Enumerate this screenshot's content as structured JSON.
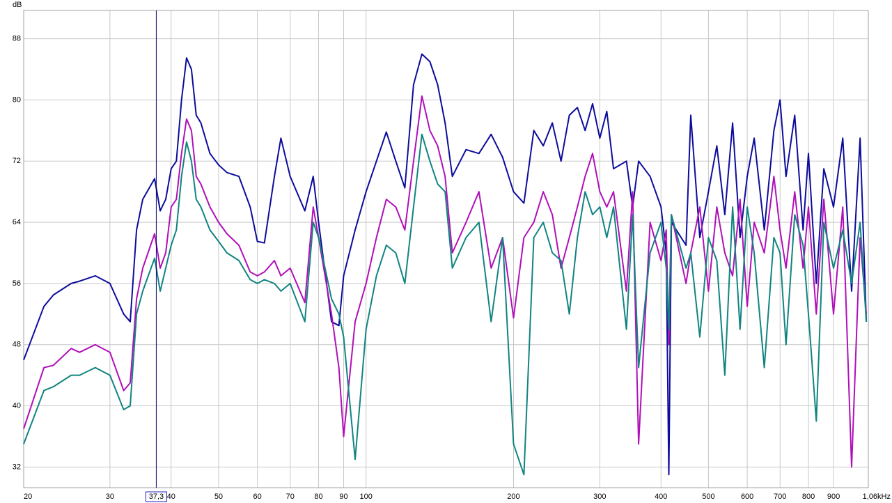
{
  "chart_data": {
    "type": "line",
    "y_label": "dB",
    "log_x": true,
    "grid": true,
    "xlim": [
      20,
      1060
    ],
    "ylim": [
      29.3,
      91.7
    ],
    "xticks": [
      20,
      30,
      40,
      50,
      60,
      70,
      80,
      90,
      100,
      200,
      300,
      400,
      500,
      600,
      700,
      800,
      900,
      {
        "value": 1060,
        "label": "1,06kHz"
      }
    ],
    "yticks": [
      32,
      40,
      48,
      56,
      64,
      72,
      80,
      88
    ],
    "cursor": {
      "value": 37.3,
      "label": "37,3"
    },
    "x": [
      20,
      22,
      23,
      25,
      26,
      28,
      30,
      32,
      33,
      34,
      35,
      37,
      38,
      39,
      40,
      41,
      42,
      43,
      44,
      45,
      46,
      48,
      50,
      52,
      55,
      58,
      60,
      62,
      65,
      67,
      70,
      75,
      78,
      80,
      85,
      88,
      90,
      95,
      100,
      105,
      110,
      115,
      120,
      125,
      130,
      135,
      140,
      145,
      150,
      160,
      170,
      180,
      190,
      200,
      210,
      220,
      230,
      240,
      250,
      260,
      270,
      280,
      290,
      300,
      310,
      320,
      340,
      350,
      360,
      380,
      400,
      410,
      415,
      420,
      450,
      460,
      480,
      500,
      520,
      540,
      560,
      580,
      600,
      620,
      650,
      680,
      700,
      720,
      750,
      780,
      800,
      830,
      860,
      900,
      940,
      980,
      1020,
      1050
    ],
    "series": [
      {
        "color": "#0c0c9c",
        "values": [
          46,
          53,
          54.5,
          56,
          56.3,
          57,
          56,
          52,
          51,
          63,
          67,
          69.7,
          65.5,
          67,
          71,
          72,
          80,
          85.5,
          84,
          78,
          77,
          73,
          71.5,
          70.5,
          70,
          66,
          61.5,
          61.3,
          70,
          75,
          70,
          65.5,
          70,
          64,
          51,
          50.5,
          57,
          63,
          68,
          72,
          75.8,
          72,
          68.5,
          82,
          86,
          85,
          82,
          77,
          70,
          73.5,
          73,
          75.5,
          72.5,
          68,
          66.5,
          76,
          74,
          77,
          72,
          78,
          79,
          76,
          79.5,
          75,
          78.5,
          71,
          72,
          66,
          72,
          70,
          66,
          60,
          31,
          64,
          61,
          78,
          62,
          68,
          74,
          65,
          77,
          62,
          70,
          75,
          63,
          76,
          80,
          70,
          78,
          63,
          73,
          56,
          71,
          66,
          75,
          55,
          75,
          51
        ]
      },
      {
        "color": "#b010b8",
        "values": [
          37,
          45,
          45.3,
          47.5,
          47,
          48,
          47,
          42,
          43,
          54,
          58,
          62.5,
          58,
          60,
          66,
          67,
          73,
          77.5,
          76,
          70,
          69,
          66,
          64,
          62.5,
          61,
          57.5,
          57,
          57.5,
          59,
          57,
          58,
          53.5,
          66,
          62,
          52,
          45,
          36,
          51,
          56,
          62,
          67,
          66,
          63,
          72,
          80.5,
          76,
          74,
          70,
          60,
          64,
          68,
          58,
          62,
          51.5,
          62,
          64,
          68,
          65,
          58,
          62,
          66,
          70,
          73,
          68,
          66,
          68,
          55,
          68,
          35,
          64,
          59,
          63,
          48,
          65,
          56,
          60,
          66,
          55,
          66,
          60,
          57,
          67,
          53,
          64,
          60,
          70,
          63,
          58,
          68,
          58,
          66,
          52,
          67,
          52,
          66,
          32,
          62,
          52
        ]
      },
      {
        "color": "#108480",
        "values": [
          35,
          42,
          42.5,
          44,
          44,
          45,
          44,
          39.5,
          40,
          52,
          55,
          59.3,
          55,
          58,
          61,
          63,
          70,
          74.5,
          72,
          67,
          66,
          63,
          61.5,
          60,
          59,
          56.5,
          56,
          56.5,
          56,
          55,
          56,
          51,
          64,
          62,
          54,
          52,
          49,
          33,
          50,
          57,
          61,
          60,
          56,
          66,
          75.5,
          72,
          69,
          68,
          58,
          62,
          64,
          51,
          62,
          35,
          31,
          62,
          64,
          60,
          59,
          52,
          62,
          68,
          65,
          66,
          62,
          66,
          50,
          65,
          45,
          60,
          64,
          58,
          50,
          65,
          58,
          60,
          49,
          62,
          59,
          44,
          66,
          50,
          66,
          60,
          45,
          62,
          60,
          48,
          65,
          61,
          52,
          38,
          64,
          58,
          63,
          56,
          64,
          51
        ]
      }
    ]
  }
}
